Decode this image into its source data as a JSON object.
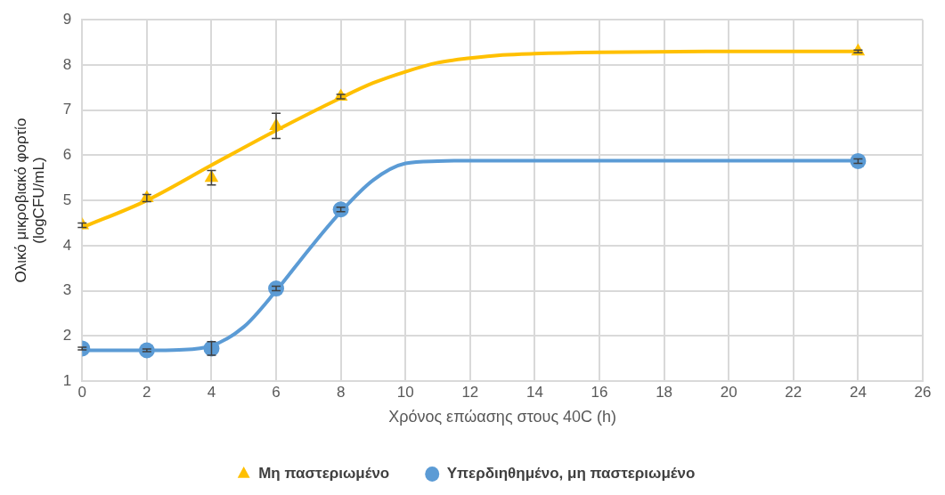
{
  "chart_data": {
    "type": "scatter",
    "xlabel": "Χρόνος επώασης στους 40C (h)",
    "ylabel": "Ολικό μικροβιακό φορτίο (logCFU/mL)",
    "xlim": [
      0,
      26
    ],
    "xticks": [
      0,
      2,
      4,
      6,
      8,
      10,
      12,
      14,
      16,
      18,
      20,
      22,
      24,
      26
    ],
    "ylim": [
      1,
      9
    ],
    "yticks": [
      1,
      2,
      3,
      4,
      5,
      6,
      7,
      8,
      9
    ],
    "grid": true,
    "legend": "bottom",
    "series": [
      {
        "name": "Μη παστεριωμένο",
        "marker": "triangle",
        "color": "#ffc000",
        "x": [
          0,
          2,
          4,
          6,
          8,
          24
        ],
        "values": [
          4.45,
          5.05,
          5.5,
          6.65,
          7.3,
          8.3
        ],
        "errors": [
          0.05,
          0.08,
          0.16,
          0.28,
          0.05,
          0.03
        ]
      },
      {
        "name": "Υπερδιηθημένο, μη παστεριωμένο",
        "marker": "circle",
        "color": "#5b9bd5",
        "x": [
          0,
          2,
          4,
          6,
          8,
          24
        ],
        "values": [
          1.72,
          1.68,
          1.72,
          3.05,
          4.8,
          5.87
        ],
        "errors": [
          0.03,
          0.03,
          0.15,
          0.05,
          0.05,
          0.05
        ]
      },
      {
        "type": "line",
        "marker": "none",
        "color": "#ffc000",
        "x": [
          0,
          2,
          4,
          6,
          8,
          9,
          10,
          11,
          12,
          13,
          14,
          16,
          20,
          24
        ],
        "values": [
          4.4,
          5.0,
          5.78,
          6.55,
          7.27,
          7.6,
          7.85,
          8.05,
          8.15,
          8.22,
          8.25,
          8.28,
          8.3,
          8.3
        ]
      },
      {
        "type": "line",
        "marker": "none",
        "color": "#5b9bd5",
        "x": [
          0,
          2,
          3,
          4,
          5,
          6,
          7,
          8,
          9,
          10,
          11,
          12,
          16,
          24
        ],
        "values": [
          1.68,
          1.68,
          1.69,
          1.78,
          2.2,
          3.0,
          3.9,
          4.75,
          5.45,
          5.82,
          5.87,
          5.88,
          5.88,
          5.88
        ]
      }
    ]
  }
}
